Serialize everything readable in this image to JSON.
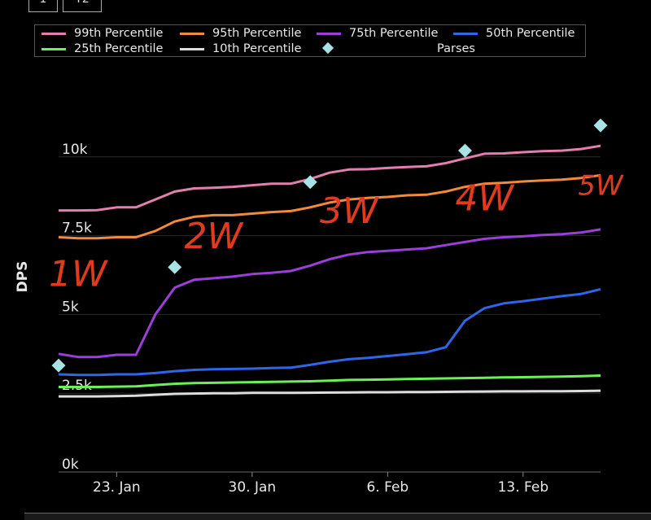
{
  "tabs": [
    {
      "label": "1"
    },
    {
      "label": "T2"
    }
  ],
  "chart_data": {
    "type": "line",
    "title": "",
    "xlabel": "",
    "ylabel": "DPS",
    "ylim": [
      0,
      12500
    ],
    "xlim": [
      "2024-01-20",
      "2024-02-17"
    ],
    "grid": true,
    "legend_placement": "top",
    "x_tick_labels": [
      "23. Jan",
      "30. Jan",
      "6. Feb",
      "13. Feb"
    ],
    "y_tick_labels": [
      "0k",
      "2.5k",
      "5k",
      "7.5k",
      "10k"
    ],
    "y_tick_values": [
      0,
      2500,
      5000,
      7500,
      10000
    ],
    "x": [
      "2024-01-20",
      "2024-01-21",
      "2024-01-22",
      "2024-01-23",
      "2024-01-24",
      "2024-01-25",
      "2024-01-26",
      "2024-01-27",
      "2024-01-28",
      "2024-01-29",
      "2024-01-30",
      "2024-01-31",
      "2024-02-01",
      "2024-02-02",
      "2024-02-03",
      "2024-02-04",
      "2024-02-05",
      "2024-02-06",
      "2024-02-07",
      "2024-02-08",
      "2024-02-09",
      "2024-02-10",
      "2024-02-11",
      "2024-02-12",
      "2024-02-13",
      "2024-02-14",
      "2024-02-15",
      "2024-02-16",
      "2024-02-17"
    ],
    "series": [
      {
        "name": "99th Percentile",
        "color": "#e27fac",
        "values": [
          8300,
          8300,
          8310,
          8400,
          8400,
          8650,
          8900,
          9000,
          9020,
          9050,
          9100,
          9150,
          9150,
          9300,
          9500,
          9600,
          9610,
          9650,
          9680,
          9700,
          9800,
          9950,
          10100,
          10110,
          10150,
          10180,
          10200,
          10250,
          10350
        ]
      },
      {
        "name": "95th Percentile",
        "color": "#f08a3c",
        "values": [
          7450,
          7420,
          7420,
          7450,
          7450,
          7650,
          7950,
          8100,
          8150,
          8150,
          8200,
          8250,
          8280,
          8400,
          8550,
          8650,
          8700,
          8730,
          8780,
          8800,
          8900,
          9050,
          9150,
          9180,
          9220,
          9250,
          9280,
          9330,
          9420
        ]
      },
      {
        "name": "75th Percentile",
        "color": "#9a3fd8",
        "values": [
          3750,
          3650,
          3650,
          3720,
          3720,
          5000,
          5850,
          6100,
          6150,
          6200,
          6280,
          6320,
          6380,
          6550,
          6750,
          6900,
          6980,
          7020,
          7060,
          7100,
          7200,
          7300,
          7400,
          7450,
          7480,
          7520,
          7550,
          7600,
          7700
        ]
      },
      {
        "name": "50th Percentile",
        "color": "#2f66e8",
        "values": [
          3100,
          3080,
          3080,
          3100,
          3100,
          3140,
          3200,
          3240,
          3260,
          3270,
          3280,
          3300,
          3310,
          3400,
          3500,
          3580,
          3620,
          3680,
          3740,
          3800,
          3960,
          4800,
          5200,
          5350,
          5420,
          5500,
          5580,
          5650,
          5800
        ]
      },
      {
        "name": "25th Percentile",
        "color": "#6cf05a",
        "values": [
          2700,
          2700,
          2700,
          2710,
          2720,
          2760,
          2800,
          2820,
          2830,
          2840,
          2850,
          2860,
          2870,
          2880,
          2900,
          2920,
          2930,
          2940,
          2950,
          2960,
          2970,
          2980,
          2990,
          3000,
          3010,
          3020,
          3030,
          3040,
          3060
        ]
      },
      {
        "name": "10th Percentile",
        "color": "#dddddd",
        "values": [
          2400,
          2400,
          2400,
          2410,
          2420,
          2450,
          2480,
          2490,
          2500,
          2500,
          2510,
          2510,
          2510,
          2515,
          2520,
          2525,
          2530,
          2530,
          2535,
          2540,
          2545,
          2550,
          2555,
          2560,
          2560,
          2565,
          2565,
          2570,
          2580
        ]
      }
    ],
    "scatter": {
      "name_suffix": "Parses",
      "color": "#a7e3e6",
      "points": [
        {
          "x": "2024-01-20",
          "y": 3380
        },
        {
          "x": "2024-01-26",
          "y": 6500
        },
        {
          "x": "2024-02-02",
          "y": 9200
        },
        {
          "x": "2024-02-10",
          "y": 10200
        },
        {
          "x": "2024-02-17",
          "y": 11000
        }
      ]
    },
    "annotations": [
      {
        "text": "1W",
        "x": "2024-01-21",
        "y": 5900,
        "color": "#e23a1f"
      },
      {
        "text": "2W",
        "x": "2024-01-28",
        "y": 7100,
        "color": "#e23a1f"
      },
      {
        "text": "3W",
        "x": "2024-02-04",
        "y": 7900,
        "color": "#e23a1f"
      },
      {
        "text": "4W",
        "x": "2024-02-11",
        "y": 8300,
        "color": "#e23a1f"
      },
      {
        "text": "5W",
        "x": "2024-02-17",
        "y": 8800,
        "color": "#e23a1f"
      }
    ]
  }
}
